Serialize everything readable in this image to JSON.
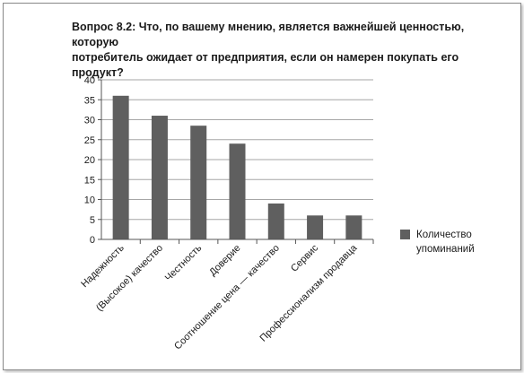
{
  "chart_data": {
    "type": "bar",
    "title_lines": [
      "Вопрос 8.2: Что, по вашему мнению, является важнейшей ценностью, которую",
      "потребитель ожидает от предприятия, если он намерен покупать его продукт?"
    ],
    "categories": [
      "Надежность",
      "(Высокое) качество",
      "Честность",
      "Доверие",
      "Соотношение цена — качество",
      "Сервис",
      "Профессионализм продавца"
    ],
    "series": [
      {
        "name": "Количество упоминаний",
        "values": [
          36,
          31,
          28.5,
          24,
          9,
          6,
          6
        ]
      }
    ],
    "legend_lines": [
      "Количество",
      "упоминаний"
    ],
    "yticks": [
      0,
      5,
      10,
      15,
      20,
      25,
      30,
      35,
      40
    ],
    "ylim": [
      0,
      40
    ],
    "grid": true,
    "legend_position": "right",
    "bar_color": "#5f5f5f",
    "grid_color": "#a6a6a6"
  }
}
